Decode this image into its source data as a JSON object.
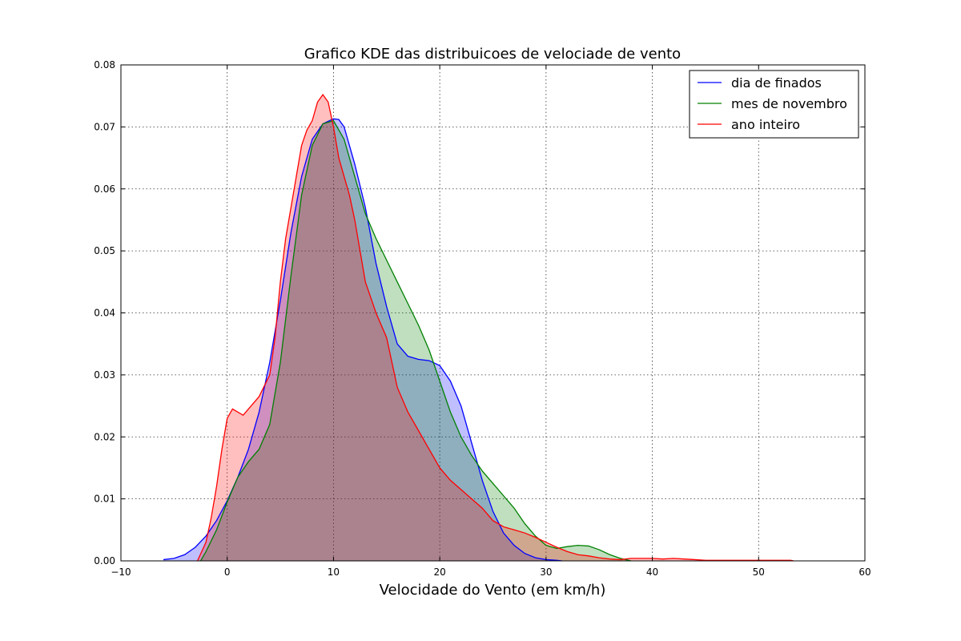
{
  "chart_data": {
    "type": "area",
    "title": "Grafico KDE das distribuicoes de velociade de vento",
    "xlabel": "Velocidade do Vento (em km/h)",
    "ylabel": "",
    "xlim": [
      -10,
      60
    ],
    "ylim": [
      0,
      0.08
    ],
    "xticks": [
      -10,
      0,
      10,
      20,
      30,
      40,
      50,
      60
    ],
    "yticks": [
      0.0,
      0.01,
      0.02,
      0.03,
      0.04,
      0.05,
      0.06,
      0.07,
      0.08
    ],
    "xtick_labels": [
      "−10",
      "0",
      "10",
      "20",
      "30",
      "40",
      "50",
      "60"
    ],
    "ytick_labels": [
      "0.00",
      "0.01",
      "0.02",
      "0.03",
      "0.04",
      "0.05",
      "0.06",
      "0.07",
      "0.08"
    ],
    "grid": true,
    "legend_position": "top-right",
    "series": [
      {
        "name": "dia de finados",
        "color": "#0000ff",
        "fill": "#0000ff",
        "x": [
          -6,
          -5,
          -4,
          -3,
          -2,
          -1,
          0,
          1,
          2,
          3,
          4,
          5,
          6,
          7,
          8,
          9,
          10,
          10.5,
          11,
          12,
          13,
          14,
          15,
          16,
          17,
          18,
          19,
          20,
          21,
          22,
          23,
          24,
          25,
          26,
          27,
          28,
          29,
          30,
          31,
          31.5
        ],
        "y": [
          0.0002,
          0.0004,
          0.001,
          0.0022,
          0.004,
          0.0065,
          0.0097,
          0.0135,
          0.018,
          0.024,
          0.032,
          0.042,
          0.053,
          0.062,
          0.068,
          0.0705,
          0.0713,
          0.0712,
          0.07,
          0.064,
          0.057,
          0.048,
          0.041,
          0.035,
          0.033,
          0.0325,
          0.0323,
          0.0315,
          0.029,
          0.025,
          0.019,
          0.013,
          0.008,
          0.0045,
          0.0025,
          0.0012,
          0.0005,
          0.0002,
          0.0001,
          0.0
        ]
      },
      {
        "name": "mes de novembro",
        "color": "#008000",
        "fill": "#008000",
        "x": [
          -2.5,
          -2,
          -1,
          0,
          1,
          2,
          3,
          4,
          5,
          6,
          7,
          8,
          9,
          10,
          11,
          12,
          13,
          14,
          15,
          16,
          17,
          18,
          19,
          20,
          21,
          22,
          23,
          24,
          25,
          26,
          27,
          28,
          29,
          30,
          31,
          32,
          33,
          34,
          35,
          36,
          37,
          38
        ],
        "y": [
          0.0,
          0.0015,
          0.005,
          0.0095,
          0.0135,
          0.016,
          0.018,
          0.022,
          0.032,
          0.046,
          0.059,
          0.067,
          0.0705,
          0.071,
          0.068,
          0.062,
          0.056,
          0.052,
          0.0485,
          0.045,
          0.0415,
          0.038,
          0.034,
          0.029,
          0.024,
          0.02,
          0.017,
          0.0145,
          0.0125,
          0.0105,
          0.0085,
          0.006,
          0.004,
          0.0025,
          0.002,
          0.0023,
          0.0025,
          0.0024,
          0.0018,
          0.001,
          0.0004,
          0.0
        ]
      },
      {
        "name": "ano inteiro",
        "color": "#ff0000",
        "fill": "#ff0000",
        "x": [
          -2.8,
          -2,
          -1.5,
          -1,
          -0.5,
          0,
          0.5,
          1,
          1.5,
          2,
          3,
          4,
          4.5,
          5,
          5.5,
          6,
          6.5,
          7,
          7.5,
          8,
          8.5,
          9,
          9.5,
          10,
          10.5,
          11,
          11.5,
          12,
          13,
          14,
          15,
          16,
          17,
          18,
          19,
          20,
          21,
          22,
          23,
          24,
          25,
          26,
          27,
          28,
          29,
          30,
          31,
          32,
          33,
          34,
          35,
          36,
          37,
          38,
          39,
          40,
          41,
          42,
          43,
          44,
          45,
          46,
          47,
          48,
          49,
          50,
          51,
          52,
          53,
          53.3
        ],
        "y": [
          0.0,
          0.003,
          0.007,
          0.012,
          0.018,
          0.023,
          0.0245,
          0.024,
          0.0235,
          0.0245,
          0.0265,
          0.03,
          0.036,
          0.045,
          0.052,
          0.057,
          0.062,
          0.067,
          0.0695,
          0.071,
          0.074,
          0.0752,
          0.074,
          0.07,
          0.065,
          0.062,
          0.059,
          0.055,
          0.045,
          0.04,
          0.036,
          0.028,
          0.024,
          0.021,
          0.018,
          0.015,
          0.013,
          0.0115,
          0.01,
          0.0085,
          0.0065,
          0.0055,
          0.005,
          0.0045,
          0.0038,
          0.003,
          0.0022,
          0.0015,
          0.001,
          0.0008,
          0.0005,
          0.0003,
          0.0002,
          0.0004,
          0.0004,
          0.0004,
          0.0003,
          0.0004,
          0.0003,
          0.0002,
          0.0001,
          0.0001,
          0.0001,
          0.0001,
          0.0001,
          0.0001,
          0.0001,
          0.0001,
          0.0001,
          0.0
        ]
      }
    ]
  }
}
